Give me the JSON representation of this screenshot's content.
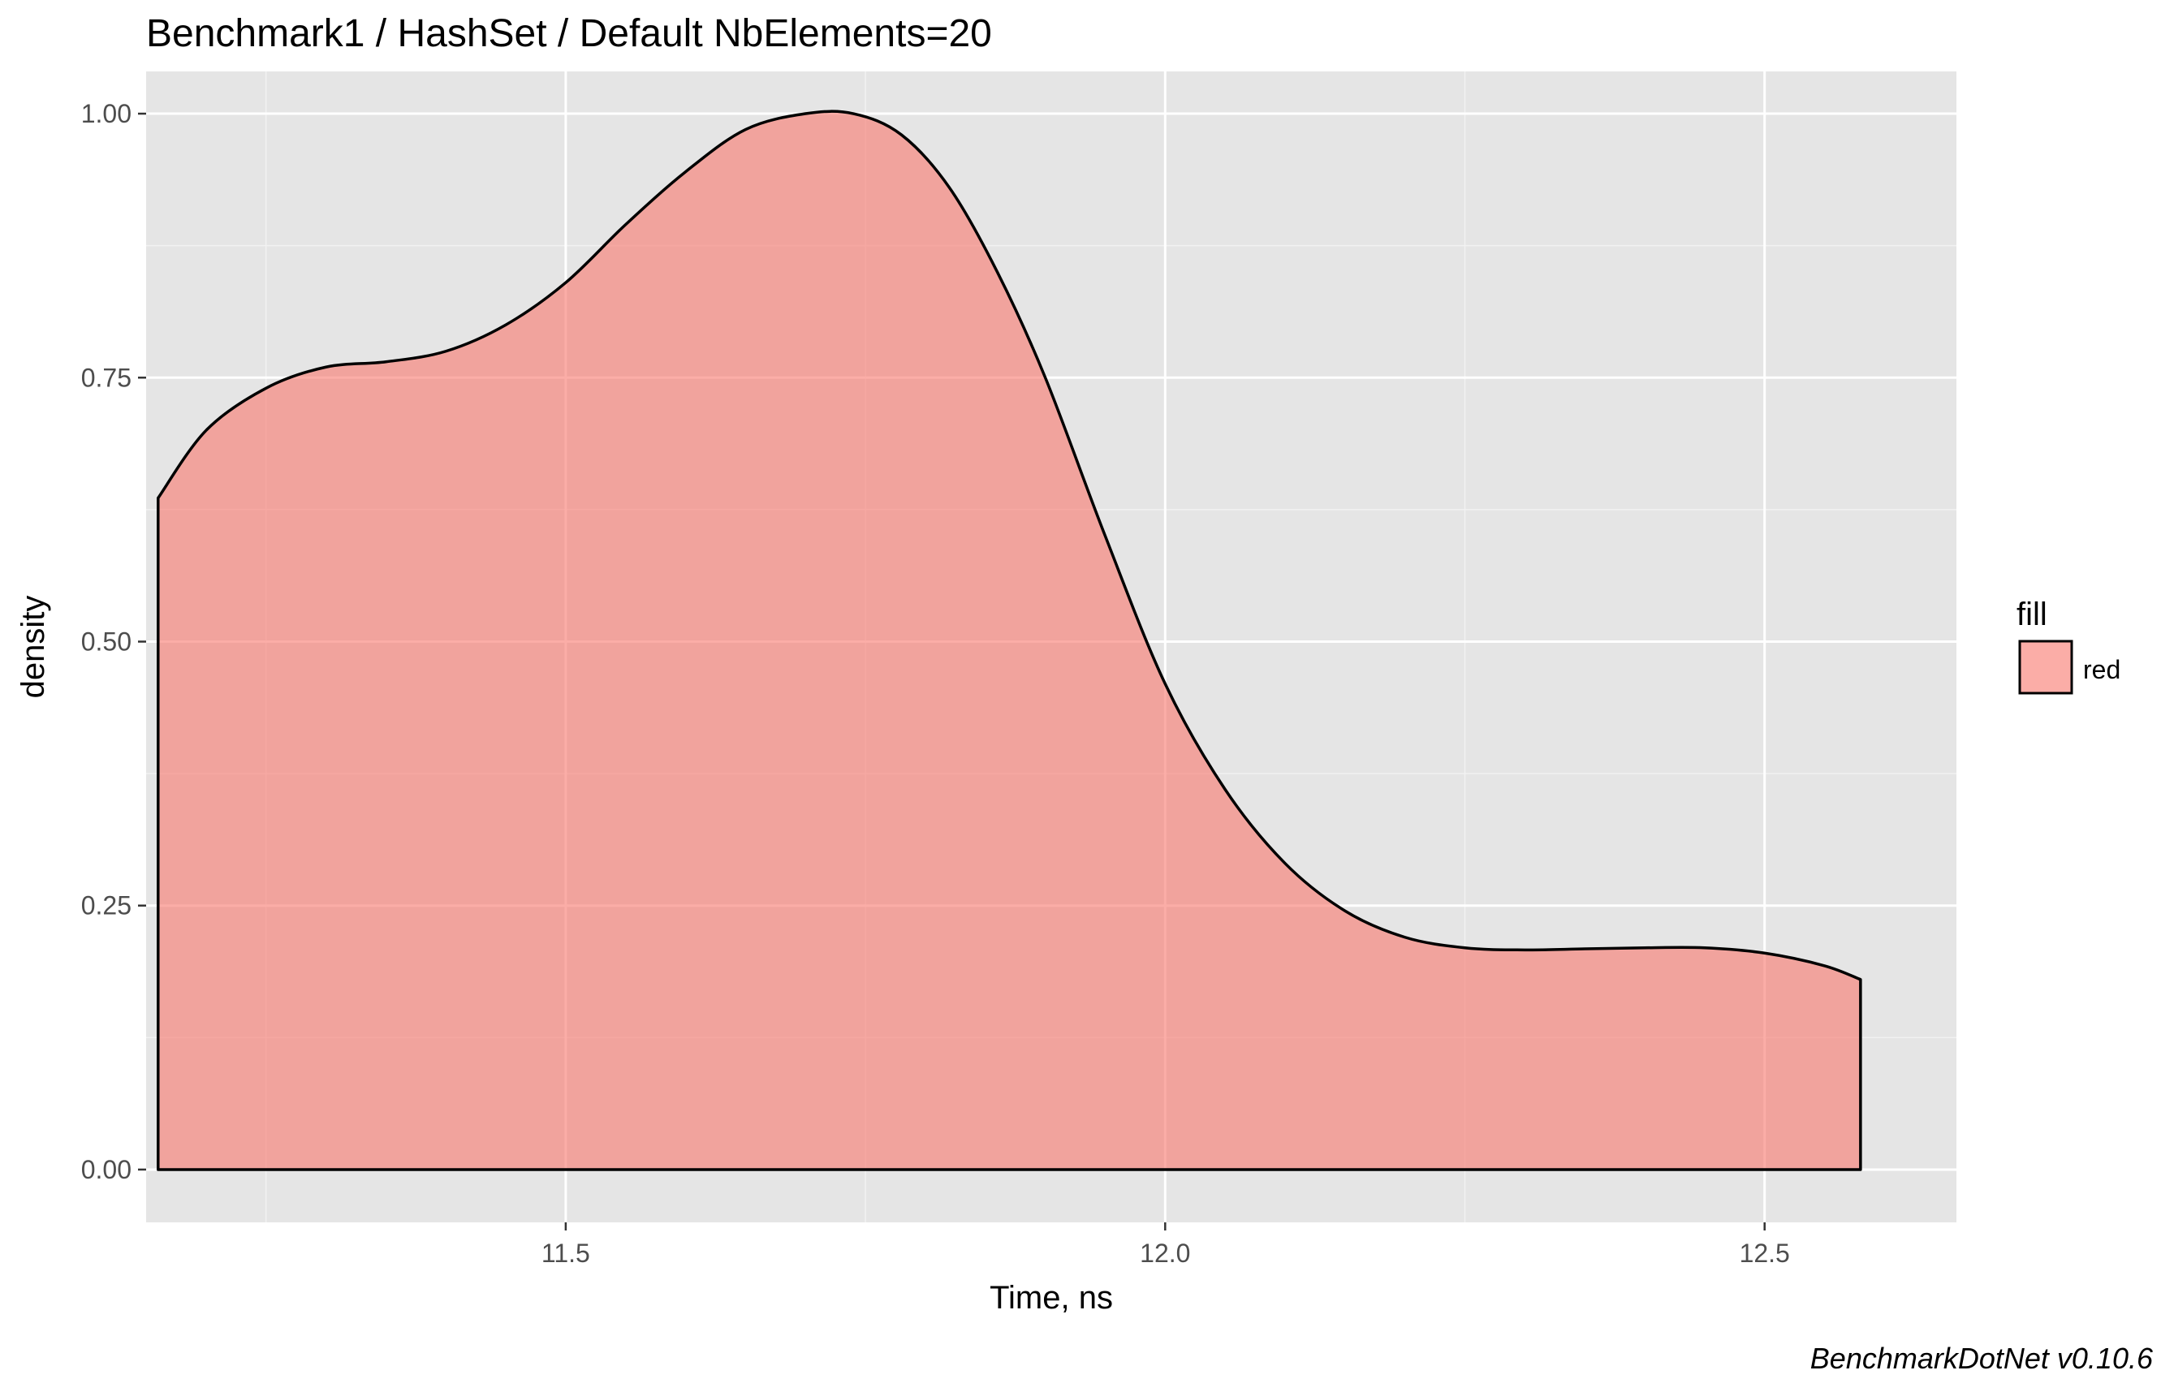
{
  "chart_data": {
    "type": "area",
    "title": "Benchmark1 / HashSet / Default NbElements=20",
    "xlabel": "Time, ns",
    "ylabel": "density",
    "caption": "BenchmarkDotNet v0.10.6",
    "xlim": [
      11.15,
      12.66
    ],
    "ylim": [
      -0.05,
      1.04
    ],
    "x_ticks": [
      11.5,
      12.0,
      12.5
    ],
    "x_tick_labels": [
      "11.5",
      "12.0",
      "12.5"
    ],
    "y_ticks": [
      0.0,
      0.25,
      0.5,
      0.75,
      1.0
    ],
    "y_tick_labels": [
      "0.00",
      "0.25",
      "0.50",
      "0.75",
      "1.00"
    ],
    "grid": true,
    "legend": {
      "title": "fill",
      "position": "right",
      "entries": [
        {
          "label": "red",
          "color": "#F8766D"
        }
      ]
    },
    "series": [
      {
        "name": "red",
        "fill": "#F8766D",
        "fill_opacity": 0.6,
        "stroke": "#000000",
        "x": [
          11.16,
          11.2,
          11.25,
          11.3,
          11.35,
          11.4,
          11.45,
          11.5,
          11.55,
          11.6,
          11.65,
          11.7,
          11.74,
          11.78,
          11.82,
          11.86,
          11.9,
          11.95,
          12.0,
          12.05,
          12.1,
          12.15,
          12.2,
          12.25,
          12.3,
          12.35,
          12.4,
          12.45,
          12.5,
          12.55,
          12.58
        ],
        "y": [
          0.636,
          0.7,
          0.74,
          0.76,
          0.765,
          0.775,
          0.8,
          0.84,
          0.895,
          0.945,
          0.985,
          1.0,
          1.0,
          0.98,
          0.93,
          0.85,
          0.75,
          0.6,
          0.46,
          0.36,
          0.29,
          0.245,
          0.22,
          0.21,
          0.208,
          0.209,
          0.21,
          0.21,
          0.205,
          0.193,
          0.18
        ]
      }
    ]
  }
}
